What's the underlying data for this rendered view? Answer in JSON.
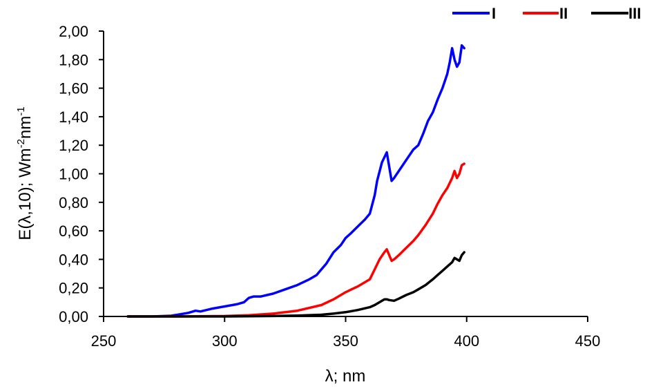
{
  "chart_data": {
    "type": "line",
    "title": "",
    "xlabel": "λ; nm",
    "ylabel_main": "E(λ,10); Wm",
    "ylabel_sup1": "-2",
    "ylabel_mid": "nm",
    "ylabel_sup2": "-1",
    "xlim": [
      250,
      450
    ],
    "ylim": [
      0,
      2.0
    ],
    "x_ticks": [
      250,
      300,
      350,
      400,
      450
    ],
    "x_tick_labels": [
      "250",
      "300",
      "350",
      "400",
      "450"
    ],
    "y_ticks": [
      0,
      0.2,
      0.4,
      0.6,
      0.8,
      1.0,
      1.2,
      1.4,
      1.6,
      1.8,
      2.0
    ],
    "y_tick_labels": [
      "0,00",
      "0,20",
      "0,40",
      "0,60",
      "0,80",
      "1,00",
      "1,20",
      "1,40",
      "1,60",
      "1,80",
      "2,00"
    ],
    "grid": false,
    "legend_position": "top-right",
    "series": [
      {
        "name": "I",
        "color": "#0000ff",
        "x": [
          260,
          270,
          278,
          285,
          288,
          290,
          295,
          300,
          305,
          308,
          310,
          312,
          315,
          320,
          325,
          330,
          335,
          338,
          340,
          342,
          345,
          348,
          350,
          352,
          355,
          358,
          360,
          362,
          363,
          365,
          367,
          368,
          369,
          370,
          372,
          374,
          376,
          378,
          380,
          382,
          384,
          386,
          388,
          390,
          392,
          393,
          394,
          395,
          396,
          397,
          398,
          399
        ],
        "y": [
          0.0,
          0.0,
          0.005,
          0.025,
          0.04,
          0.035,
          0.055,
          0.07,
          0.085,
          0.1,
          0.13,
          0.14,
          0.14,
          0.16,
          0.19,
          0.22,
          0.26,
          0.29,
          0.33,
          0.37,
          0.45,
          0.5,
          0.55,
          0.58,
          0.63,
          0.68,
          0.72,
          0.85,
          0.95,
          1.08,
          1.15,
          1.05,
          0.95,
          0.97,
          1.02,
          1.07,
          1.12,
          1.17,
          1.2,
          1.28,
          1.37,
          1.43,
          1.52,
          1.6,
          1.7,
          1.78,
          1.88,
          1.8,
          1.75,
          1.78,
          1.9,
          1.88
        ]
      },
      {
        "name": "II",
        "color": "#ff0000",
        "x": [
          260,
          280,
          300,
          310,
          320,
          330,
          340,
          345,
          350,
          355,
          360,
          362,
          364,
          366,
          367,
          368,
          369,
          370,
          372,
          375,
          378,
          380,
          383,
          386,
          388,
          390,
          392,
          394,
          395,
          396,
          397,
          398,
          399
        ],
        "y": [
          0.0,
          0.0,
          0.003,
          0.008,
          0.02,
          0.04,
          0.08,
          0.12,
          0.17,
          0.21,
          0.26,
          0.33,
          0.4,
          0.45,
          0.47,
          0.43,
          0.39,
          0.4,
          0.43,
          0.48,
          0.53,
          0.57,
          0.64,
          0.72,
          0.79,
          0.85,
          0.9,
          0.97,
          1.02,
          0.97,
          1.0,
          1.06,
          1.07
        ]
      },
      {
        "name": "III",
        "color": "#000000",
        "x": [
          260,
          300,
          320,
          330,
          340,
          345,
          350,
          355,
          360,
          362,
          364,
          366,
          367,
          368,
          370,
          372,
          375,
          378,
          380,
          383,
          386,
          388,
          390,
          392,
          394,
          395,
          396,
          397,
          398,
          399
        ],
        "y": [
          0.0,
          0.0,
          0.003,
          0.006,
          0.012,
          0.02,
          0.03,
          0.045,
          0.065,
          0.08,
          0.1,
          0.12,
          0.12,
          0.115,
          0.11,
          0.125,
          0.15,
          0.17,
          0.19,
          0.22,
          0.26,
          0.29,
          0.32,
          0.35,
          0.38,
          0.41,
          0.4,
          0.39,
          0.43,
          0.45
        ]
      }
    ]
  }
}
